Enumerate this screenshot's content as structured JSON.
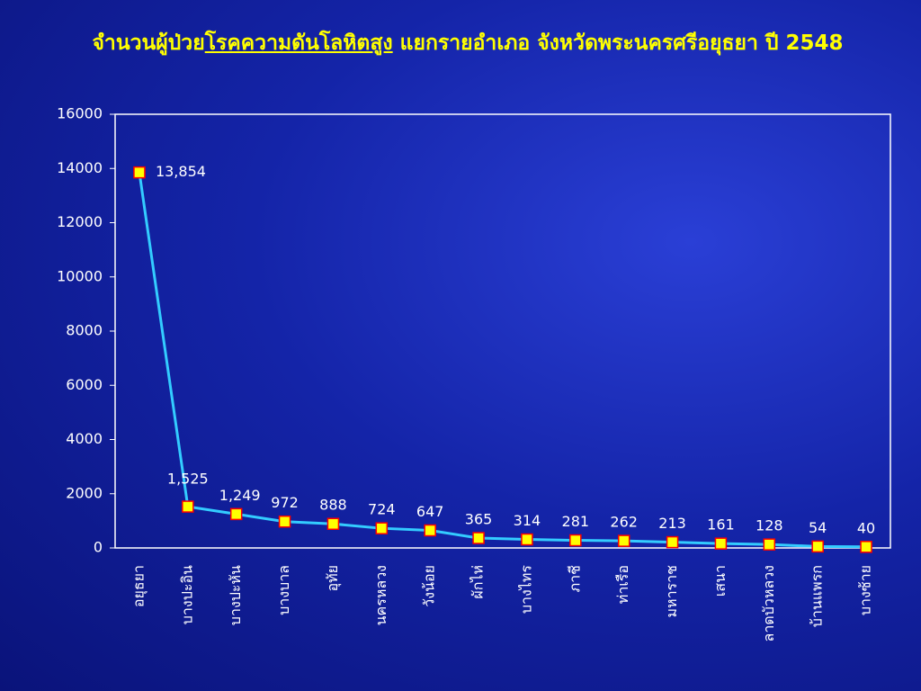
{
  "chart_data": {
    "type": "line",
    "title": [
      "จำนวนผู้ป่วย",
      "โรคความดันโลหิตสูง",
      " แยกรายอำเภอ จังหวัดพระนครศรีอยุธยา ปี 2548"
    ],
    "categories": [
      "อยุธยา",
      "บางปะอิน",
      "บางปะหัน",
      "บางบาล",
      "อุทัย",
      "นครหลวง",
      "วังน้อย",
      "ผักไห่",
      "บางไทร",
      "ภาชี",
      "ท่าเรือ",
      "มหาราช",
      "เสนา",
      "ลาดบัวหลวง",
      "บ้านแพรก",
      "บางซ้าย"
    ],
    "values": [
      13854,
      1525,
      1249,
      972,
      888,
      724,
      647,
      365,
      314,
      281,
      262,
      213,
      161,
      128,
      54,
      40
    ],
    "value_labels": [
      "13,854",
      "1,525",
      "1,249",
      "972",
      "888",
      "724",
      "647",
      "365",
      "314",
      "281",
      "262",
      "213",
      "161",
      "128",
      "54",
      "40"
    ],
    "color": "#33ccff",
    "marker_color": "#ffff00",
    "marker_edge_color": "#ff0000",
    "ylim": [
      0,
      16000
    ],
    "yticks": [
      0,
      2000,
      4000,
      6000,
      8000,
      10000,
      12000,
      14000,
      16000
    ]
  }
}
